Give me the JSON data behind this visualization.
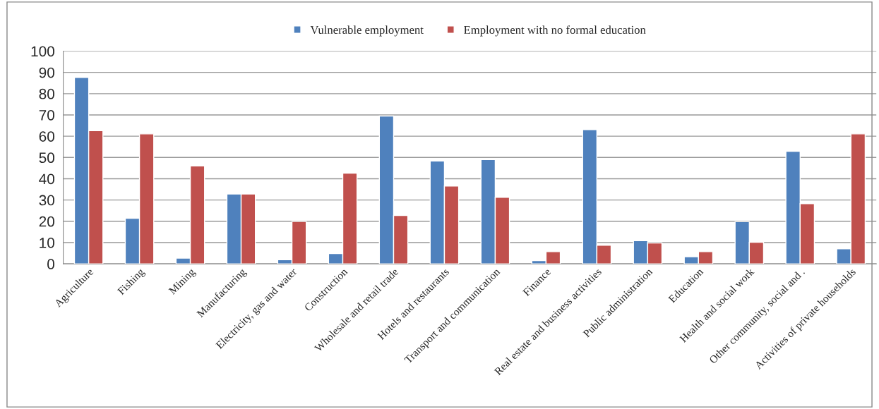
{
  "chart_data": {
    "type": "bar",
    "categories": [
      "Agriculture",
      "Fishing",
      "Mining",
      "Manufacturing",
      "Electricity, gas and water",
      "Construction",
      "Wholesale and retail trade",
      "Hotels and restaurants",
      "Transport and communication",
      "Finance",
      "Real estate and business activities",
      "Public administration",
      "Education",
      "Health and social work",
      "Other community, social and .",
      "Activities of private households"
    ],
    "series": [
      {
        "name": "Vulnerable employment",
        "color": "#4f81bd",
        "values": [
          87.6,
          21.4,
          2.7,
          32.8,
          1.9,
          4.8,
          69.5,
          48.3,
          49.0,
          1.5,
          63.1,
          10.9,
          3.3,
          19.8,
          52.9,
          7.1
        ]
      },
      {
        "name": "Employment with no formal education",
        "color": "#c0504d",
        "values": [
          62.6,
          61.1,
          46.0,
          32.8,
          19.9,
          42.6,
          22.7,
          36.6,
          31.3,
          5.7,
          8.7,
          9.8,
          5.7,
          10.1,
          28.3,
          61.1
        ]
      }
    ],
    "ylim": [
      0,
      100
    ],
    "yticks": [
      0,
      10,
      20,
      30,
      40,
      50,
      60,
      70,
      80,
      90,
      100
    ],
    "grid": "y",
    "legend": "top"
  }
}
